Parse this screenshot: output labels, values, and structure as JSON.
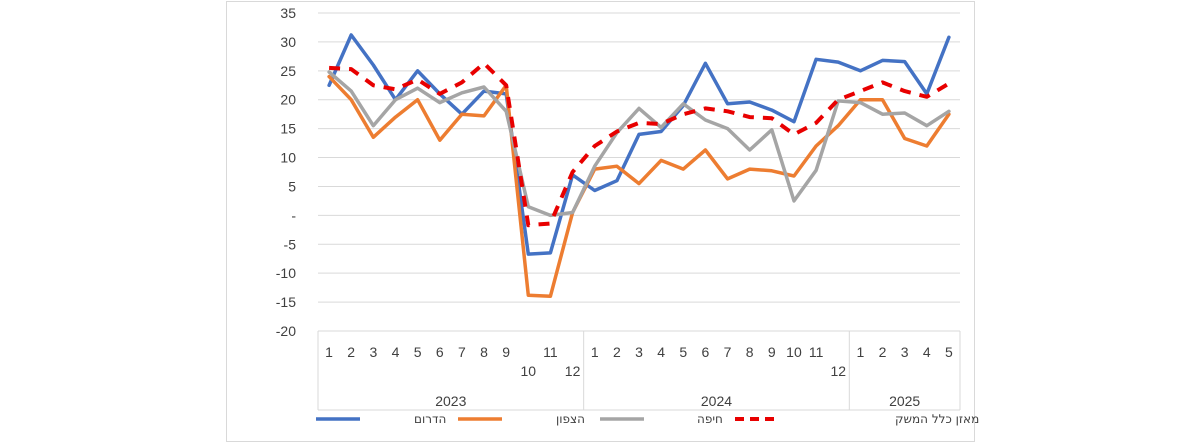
{
  "chart_data": {
    "type": "line",
    "ylim": [
      -20,
      35
    ],
    "yticks": [
      35,
      30,
      25,
      20,
      15,
      10,
      5,
      0,
      -5,
      -10,
      -15,
      -20
    ],
    "ytick_labels": [
      "35",
      "30",
      "25",
      "20",
      "15",
      "10",
      "5",
      "-",
      "-5",
      "-10",
      "-15",
      "-20"
    ],
    "grid": true,
    "legend_position": "bottom",
    "x_month_labels": [
      "1",
      "2",
      "3",
      "4",
      "5",
      "6",
      "7",
      "8",
      "9",
      "10",
      "11",
      "12",
      "1",
      "2",
      "3",
      "4",
      "5",
      "6",
      "7",
      "8",
      "9",
      "10",
      "11",
      "12",
      "1",
      "2",
      "3",
      "4",
      "5"
    ],
    "years": [
      {
        "label": "2023",
        "months": 12
      },
      {
        "label": "2024",
        "months": 12
      },
      {
        "label": "2025",
        "months": 5
      }
    ],
    "series": [
      {
        "name": "הדרום",
        "color": "#4472C4",
        "style": "solid",
        "values": [
          22.5,
          31.2,
          26,
          20,
          25,
          21,
          17.5,
          21.5,
          21,
          -6.7,
          -6.5,
          7,
          4.3,
          6,
          14,
          14.5,
          19,
          26.3,
          19.3,
          19.6,
          18.2,
          16.2,
          27,
          26.5,
          25,
          26.8,
          26.6,
          21,
          30.8
        ]
      },
      {
        "name": "הצפון",
        "color": "#ED7D31",
        "style": "solid",
        "values": [
          24,
          20,
          13.5,
          17,
          20,
          13,
          17.5,
          17.2,
          22.5,
          -13.8,
          -14,
          0.5,
          8,
          8.5,
          5.5,
          9.5,
          8,
          11.3,
          6.3,
          8,
          7.7,
          6.8,
          12,
          15.5,
          20,
          20,
          13.3,
          12,
          17.5
        ]
      },
      {
        "name": "חיפה",
        "color": "#A5A5A5",
        "style": "solid",
        "values": [
          24.8,
          21.5,
          15.5,
          20,
          22,
          19.5,
          21.2,
          22.2,
          18,
          1.5,
          0,
          0.5,
          8.5,
          14.3,
          18.5,
          15.2,
          19.3,
          16.5,
          15,
          11.3,
          14.8,
          2.5,
          7.8,
          19.8,
          19.5,
          17.5,
          17.7,
          15.5,
          18
        ]
      },
      {
        "name": "מאזן כלל המשק",
        "color": "#E80000",
        "style": "dashed",
        "values": [
          25.5,
          25.3,
          22.5,
          21.8,
          23.5,
          21,
          23,
          26.3,
          22.5,
          -1.7,
          -1.4,
          7.5,
          12,
          14.5,
          16,
          15.8,
          17.5,
          18.5,
          18,
          17,
          16.8,
          14,
          16,
          20,
          21.5,
          23,
          21.5,
          20.5,
          22.8
        ]
      }
    ]
  }
}
